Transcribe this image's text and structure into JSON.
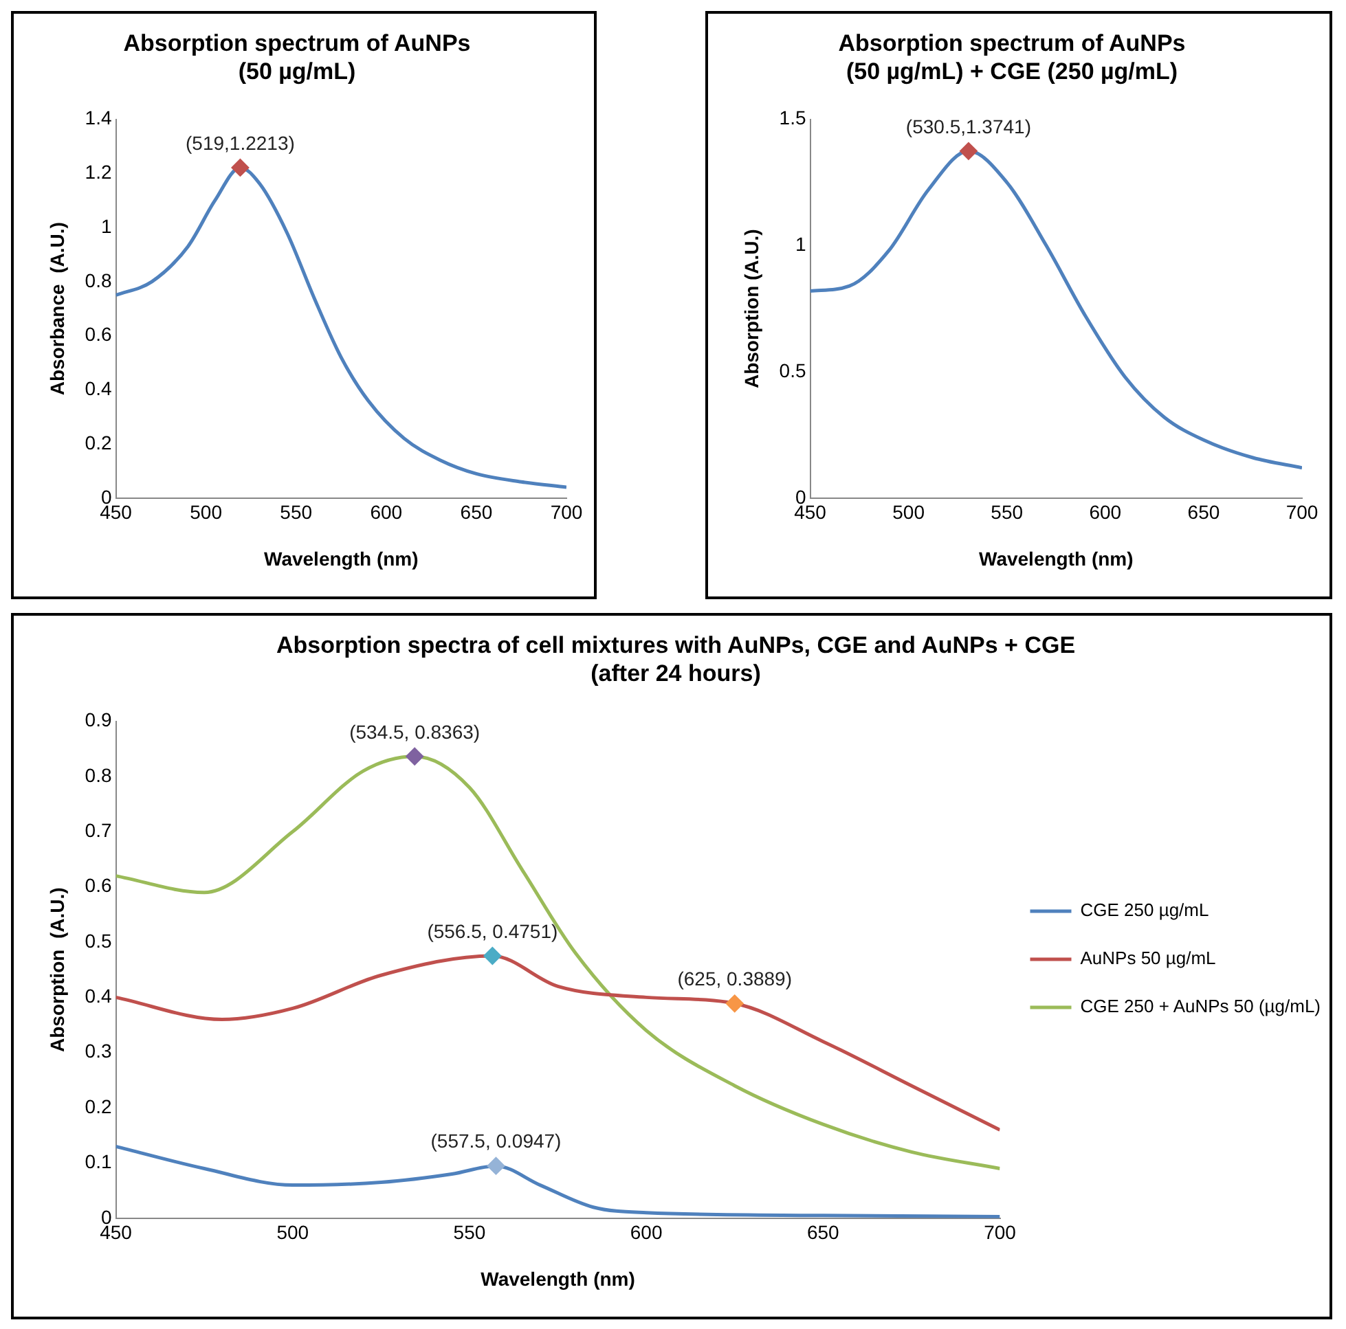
{
  "chart_data": [
    {
      "type": "line",
      "title": "Absorption spectrum of AuNPs\n(50 µg/mL)",
      "xlabel": "Wavelength (nm)",
      "ylabel": "Absorbance  (A.U.)",
      "xlim": [
        450,
        700
      ],
      "xticks": [
        450,
        500,
        550,
        600,
        650,
        700
      ],
      "ylim": [
        0,
        1.4
      ],
      "yticks": [
        0,
        0.2,
        0.4,
        0.6,
        0.8,
        1,
        1.2,
        1.4
      ],
      "legend": false,
      "line_style": "solid",
      "series": [
        {
          "color": "#4f81bd",
          "marker": "none",
          "x": [
            450,
            470,
            490,
            505,
            519,
            530,
            545,
            560,
            575,
            590,
            610,
            630,
            650,
            675,
            700
          ],
          "values": [
            0.75,
            0.8,
            0.93,
            1.1,
            1.2213,
            1.16,
            0.98,
            0.74,
            0.52,
            0.36,
            0.22,
            0.14,
            0.09,
            0.06,
            0.04
          ]
        },
        {
          "type": "scatter",
          "color": "#c0504d",
          "marker": "diamond",
          "x": [
            519
          ],
          "values": [
            1.2213
          ]
        }
      ],
      "annotations": [
        {
          "text": "(519,1.2213)",
          "x": 519,
          "y": 1.2213
        }
      ]
    },
    {
      "type": "line",
      "title": "Absorption spectrum of AuNPs\n(50 µg/mL) + CGE (250 µg/mL)",
      "xlabel": "Wavelength (nm)",
      "ylabel": "Absorption (A.U.)",
      "xlim": [
        450,
        700
      ],
      "xticks": [
        450,
        500,
        550,
        600,
        650,
        700
      ],
      "ylim": [
        0,
        1.5
      ],
      "yticks": [
        0,
        0.5,
        1,
        1.5
      ],
      "legend": false,
      "line_style": "solid",
      "series": [
        {
          "color": "#4f81bd",
          "marker": "none",
          "x": [
            450,
            470,
            490,
            510,
            530.5,
            550,
            570,
            590,
            610,
            630,
            650,
            675,
            700
          ],
          "values": [
            0.82,
            0.84,
            0.98,
            1.22,
            1.3741,
            1.25,
            1.0,
            0.72,
            0.48,
            0.32,
            0.23,
            0.16,
            0.12
          ]
        },
        {
          "type": "scatter",
          "color": "#c0504d",
          "marker": "diamond",
          "x": [
            530.5
          ],
          "values": [
            1.3741
          ]
        }
      ],
      "annotations": [
        {
          "text": "(530.5,1.3741)",
          "x": 530.5,
          "y": 1.3741
        }
      ]
    },
    {
      "type": "line",
      "title": "Absorption spectra of cell mixtures with AuNPs, CGE and AuNPs + CGE\n(after 24 hours)",
      "xlabel": "Wavelength (nm)",
      "ylabel": "Absorption  (A.U.)",
      "xlim": [
        450,
        700
      ],
      "xticks": [
        450,
        500,
        550,
        600,
        650,
        700
      ],
      "ylim": [
        0,
        0.9
      ],
      "yticks": [
        0,
        0.1,
        0.2,
        0.3,
        0.4,
        0.5,
        0.6,
        0.7,
        0.8,
        0.9
      ],
      "legend": "right",
      "line_style": "solid",
      "series": [
        {
          "name": "CGE 250 µg/mL",
          "color": "#4f81bd",
          "marker": "none",
          "x": [
            450,
            475,
            500,
            525,
            545,
            557.5,
            570,
            585,
            600,
            650,
            700
          ],
          "values": [
            0.13,
            0.09,
            0.06,
            0.065,
            0.08,
            0.0947,
            0.06,
            0.02,
            0.01,
            0.005,
            0.003
          ]
        },
        {
          "name": "AuNPs 50 µg/mL",
          "color": "#c0504d",
          "marker": "none",
          "x": [
            450,
            480,
            500,
            525,
            556.5,
            575,
            600,
            625,
            650,
            675,
            700
          ],
          "values": [
            0.4,
            0.36,
            0.38,
            0.44,
            0.4751,
            0.42,
            0.4,
            0.3889,
            0.32,
            0.24,
            0.16
          ]
        },
        {
          "name": "CGE 250 + AuNPs 50 (µg/mL)",
          "color": "#9bbb59",
          "marker": "none",
          "x": [
            450,
            475,
            500,
            520,
            534.5,
            550,
            565,
            580,
            600,
            625,
            650,
            675,
            700
          ],
          "values": [
            0.62,
            0.59,
            0.7,
            0.81,
            0.8363,
            0.78,
            0.63,
            0.48,
            0.34,
            0.24,
            0.17,
            0.12,
            0.09
          ]
        },
        {
          "type": "scatter",
          "color": "#7f62a0",
          "marker": "diamond",
          "x": [
            534.5
          ],
          "values": [
            0.8363
          ]
        },
        {
          "type": "scatter",
          "color": "#4bacc6",
          "marker": "diamond",
          "x": [
            556.5
          ],
          "values": [
            0.4751
          ]
        },
        {
          "type": "scatter",
          "color": "#f79646",
          "marker": "diamond",
          "x": [
            625
          ],
          "values": [
            0.3889
          ]
        },
        {
          "type": "scatter",
          "color": "#95b3d7",
          "marker": "diamond",
          "x": [
            557.5
          ],
          "values": [
            0.0947
          ]
        }
      ],
      "annotations": [
        {
          "text": "(534.5, 0.8363)",
          "x": 534.5,
          "y": 0.8363
        },
        {
          "text": "(556.5, 0.4751)",
          "x": 556.5,
          "y": 0.4751
        },
        {
          "text": "(625, 0.3889)",
          "x": 625,
          "y": 0.3889
        },
        {
          "text": "(557.5, 0.0947)",
          "x": 557.5,
          "y": 0.0947
        }
      ]
    }
  ]
}
